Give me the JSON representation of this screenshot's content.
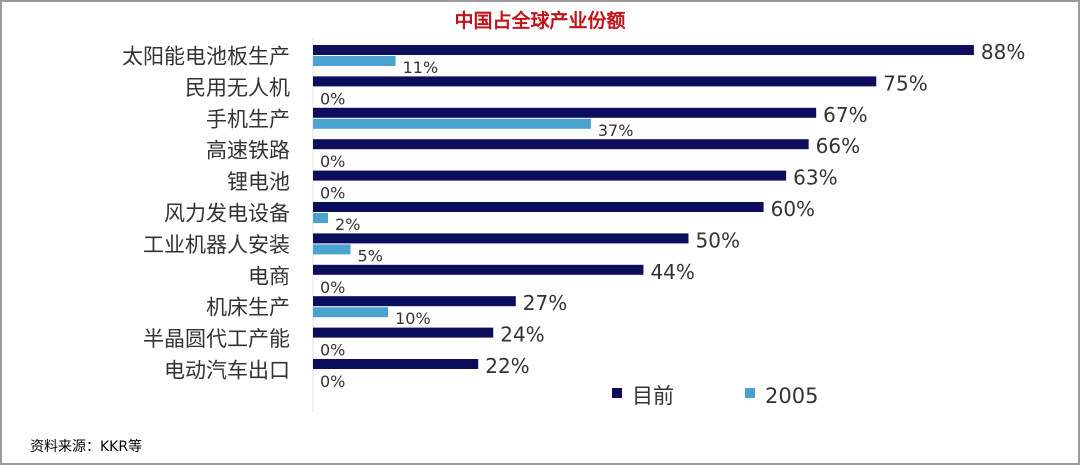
{
  "chart_data": {
    "type": "bar",
    "orientation": "horizontal",
    "title": "中国占全球产业份额",
    "categories": [
      "太阳能电池板生产",
      "民用无人机",
      "手机生产",
      "高速铁路",
      "锂电池",
      "风力发电设备",
      "工业机器人安装",
      "电商",
      "机床生产",
      "半晶圆代工产能",
      "电动汽车出口"
    ],
    "series": [
      {
        "name": "目前",
        "color": "#0d0d5e",
        "values": [
          88,
          75,
          67,
          66,
          63,
          60,
          50,
          44,
          27,
          24,
          22
        ]
      },
      {
        "name": "2005",
        "color": "#4aa3cf",
        "values": [
          11,
          0,
          37,
          0,
          0,
          2,
          5,
          0,
          10,
          0,
          0
        ]
      }
    ],
    "value_suffix": "%",
    "xlim": [
      0,
      100
    ],
    "grid": false,
    "legend": "bottom-right"
  },
  "source_note": "资料来源：KKR等"
}
